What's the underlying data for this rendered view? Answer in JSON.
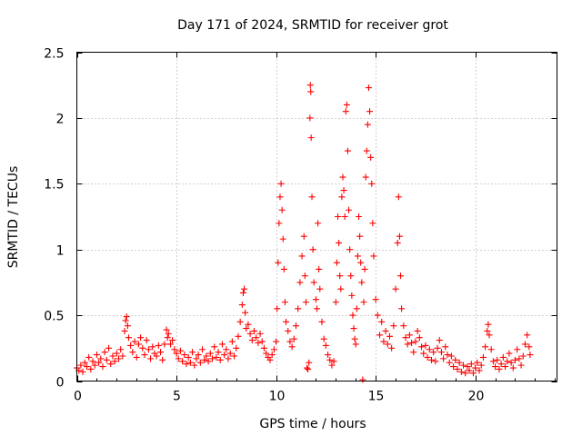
{
  "chart_data": {
    "type": "scatter",
    "title": "Day 171 of 2024, SRMTID for receiver grot",
    "xlabel": "GPS time / hours",
    "ylabel": "SRMTID / TECUs",
    "xlim": [
      0,
      24.1
    ],
    "ylim": [
      0,
      2.5
    ],
    "x_ticks": [
      0,
      5,
      10,
      15,
      20
    ],
    "x_tick_labels": [
      "0",
      "5",
      "10",
      "15",
      "20"
    ],
    "y_ticks": [
      0,
      0.5,
      1,
      1.5,
      2,
      2.5
    ],
    "y_tick_labels": [
      "0",
      "0.5",
      "1",
      "1.5",
      "2",
      "2.5"
    ],
    "grid": true,
    "marker": "+",
    "marker_color": "#ff0000",
    "series": [
      {
        "name": "SRMTID",
        "points": [
          [
            0.0,
            0.1
          ],
          [
            0.1,
            0.08
          ],
          [
            0.2,
            0.12
          ],
          [
            0.3,
            0.07
          ],
          [
            0.4,
            0.14
          ],
          [
            0.5,
            0.11
          ],
          [
            0.6,
            0.18
          ],
          [
            0.7,
            0.09
          ],
          [
            0.8,
            0.15
          ],
          [
            0.9,
            0.12
          ],
          [
            1.0,
            0.2
          ],
          [
            1.1,
            0.14
          ],
          [
            1.2,
            0.17
          ],
          [
            1.3,
            0.11
          ],
          [
            1.4,
            0.22
          ],
          [
            1.5,
            0.16
          ],
          [
            1.6,
            0.25
          ],
          [
            1.7,
            0.13
          ],
          [
            1.8,
            0.19
          ],
          [
            1.9,
            0.15
          ],
          [
            2.0,
            0.21
          ],
          [
            2.1,
            0.17
          ],
          [
            2.2,
            0.24
          ],
          [
            2.3,
            0.19
          ],
          [
            2.4,
            0.38
          ],
          [
            2.45,
            0.46
          ],
          [
            2.5,
            0.49
          ],
          [
            2.55,
            0.42
          ],
          [
            2.6,
            0.33
          ],
          [
            2.7,
            0.27
          ],
          [
            2.8,
            0.22
          ],
          [
            2.9,
            0.3
          ],
          [
            3.0,
            0.18
          ],
          [
            3.1,
            0.28
          ],
          [
            3.2,
            0.33
          ],
          [
            3.3,
            0.25
          ],
          [
            3.4,
            0.2
          ],
          [
            3.5,
            0.31
          ],
          [
            3.6,
            0.24
          ],
          [
            3.7,
            0.17
          ],
          [
            3.8,
            0.26
          ],
          [
            3.9,
            0.21
          ],
          [
            4.0,
            0.19
          ],
          [
            4.1,
            0.27
          ],
          [
            4.2,
            0.22
          ],
          [
            4.3,
            0.16
          ],
          [
            4.4,
            0.28
          ],
          [
            4.5,
            0.39
          ],
          [
            4.55,
            0.33
          ],
          [
            4.6,
            0.36
          ],
          [
            4.7,
            0.28
          ],
          [
            4.8,
            0.31
          ],
          [
            4.9,
            0.24
          ],
          [
            5.0,
            0.21
          ],
          [
            5.1,
            0.17
          ],
          [
            5.2,
            0.23
          ],
          [
            5.3,
            0.15
          ],
          [
            5.4,
            0.2
          ],
          [
            5.5,
            0.13
          ],
          [
            5.6,
            0.18
          ],
          [
            5.7,
            0.14
          ],
          [
            5.8,
            0.22
          ],
          [
            5.9,
            0.12
          ],
          [
            6.0,
            0.17
          ],
          [
            6.1,
            0.2
          ],
          [
            6.2,
            0.14
          ],
          [
            6.3,
            0.24
          ],
          [
            6.4,
            0.16
          ],
          [
            6.5,
            0.19
          ],
          [
            6.6,
            0.15
          ],
          [
            6.7,
            0.21
          ],
          [
            6.8,
            0.17
          ],
          [
            6.9,
            0.26
          ],
          [
            7.0,
            0.18
          ],
          [
            7.1,
            0.22
          ],
          [
            7.2,
            0.16
          ],
          [
            7.3,
            0.28
          ],
          [
            7.4,
            0.2
          ],
          [
            7.5,
            0.24
          ],
          [
            7.6,
            0.17
          ],
          [
            7.7,
            0.21
          ],
          [
            7.8,
            0.3
          ],
          [
            7.9,
            0.19
          ],
          [
            8.0,
            0.25
          ],
          [
            8.1,
            0.34
          ],
          [
            8.2,
            0.45
          ],
          [
            8.3,
            0.58
          ],
          [
            8.35,
            0.67
          ],
          [
            8.4,
            0.7
          ],
          [
            8.45,
            0.52
          ],
          [
            8.5,
            0.4
          ],
          [
            8.6,
            0.43
          ],
          [
            8.7,
            0.36
          ],
          [
            8.8,
            0.31
          ],
          [
            8.9,
            0.38
          ],
          [
            9.0,
            0.33
          ],
          [
            9.1,
            0.29
          ],
          [
            9.2,
            0.36
          ],
          [
            9.3,
            0.3
          ],
          [
            9.4,
            0.25
          ],
          [
            9.5,
            0.21
          ],
          [
            9.6,
            0.18
          ],
          [
            9.7,
            0.16
          ],
          [
            9.8,
            0.2
          ],
          [
            9.9,
            0.24
          ],
          [
            10.0,
            0.3
          ],
          [
            10.05,
            0.55
          ],
          [
            10.1,
            0.9
          ],
          [
            10.15,
            1.2
          ],
          [
            10.2,
            1.4
          ],
          [
            10.25,
            1.5
          ],
          [
            10.3,
            1.3
          ],
          [
            10.35,
            1.08
          ],
          [
            10.4,
            0.85
          ],
          [
            10.45,
            0.6
          ],
          [
            10.5,
            0.45
          ],
          [
            10.6,
            0.38
          ],
          [
            10.7,
            0.3
          ],
          [
            10.8,
            0.26
          ],
          [
            10.9,
            0.32
          ],
          [
            11.0,
            0.42
          ],
          [
            11.1,
            0.55
          ],
          [
            11.2,
            0.75
          ],
          [
            11.3,
            0.95
          ],
          [
            11.4,
            1.1
          ],
          [
            11.45,
            0.8
          ],
          [
            11.5,
            0.6
          ],
          [
            11.55,
            0.1
          ],
          [
            11.6,
            0.09
          ],
          [
            11.65,
            0.14
          ],
          [
            11.7,
            2.0
          ],
          [
            11.72,
            2.25
          ],
          [
            11.74,
            2.2
          ],
          [
            11.76,
            1.85
          ],
          [
            11.8,
            1.4
          ],
          [
            11.85,
            1.0
          ],
          [
            11.9,
            0.75
          ],
          [
            12.0,
            0.62
          ],
          [
            12.05,
            0.55
          ],
          [
            12.1,
            1.2
          ],
          [
            12.15,
            0.85
          ],
          [
            12.2,
            0.7
          ],
          [
            12.3,
            0.45
          ],
          [
            12.4,
            0.32
          ],
          [
            12.5,
            0.27
          ],
          [
            12.6,
            0.2
          ],
          [
            12.7,
            0.16
          ],
          [
            12.8,
            0.12
          ],
          [
            12.9,
            0.15
          ],
          [
            13.0,
            0.6
          ],
          [
            13.05,
            0.9
          ],
          [
            13.1,
            1.25
          ],
          [
            13.15,
            1.05
          ],
          [
            13.2,
            0.8
          ],
          [
            13.25,
            0.7
          ],
          [
            13.3,
            1.4
          ],
          [
            13.35,
            1.55
          ],
          [
            13.4,
            1.45
          ],
          [
            13.45,
            1.25
          ],
          [
            13.5,
            2.05
          ],
          [
            13.55,
            2.1
          ],
          [
            13.6,
            1.75
          ],
          [
            13.65,
            1.3
          ],
          [
            13.7,
            1.0
          ],
          [
            13.75,
            0.8
          ],
          [
            13.8,
            0.65
          ],
          [
            13.85,
            0.5
          ],
          [
            13.9,
            0.4
          ],
          [
            13.95,
            0.32
          ],
          [
            14.0,
            0.28
          ],
          [
            14.05,
            0.55
          ],
          [
            14.1,
            0.95
          ],
          [
            14.15,
            1.25
          ],
          [
            14.2,
            1.1
          ],
          [
            14.25,
            0.9
          ],
          [
            14.3,
            0.75
          ],
          [
            14.35,
            0.01
          ],
          [
            14.4,
            0.6
          ],
          [
            14.45,
            0.85
          ],
          [
            14.5,
            1.55
          ],
          [
            14.55,
            1.75
          ],
          [
            14.6,
            1.95
          ],
          [
            14.65,
            2.23
          ],
          [
            14.7,
            2.05
          ],
          [
            14.75,
            1.7
          ],
          [
            14.8,
            1.5
          ],
          [
            14.85,
            1.2
          ],
          [
            14.9,
            0.95
          ],
          [
            15.0,
            0.62
          ],
          [
            15.1,
            0.5
          ],
          [
            15.2,
            0.35
          ],
          [
            15.3,
            0.45
          ],
          [
            15.4,
            0.3
          ],
          [
            15.5,
            0.38
          ],
          [
            15.6,
            0.28
          ],
          [
            15.7,
            0.34
          ],
          [
            15.8,
            0.25
          ],
          [
            15.9,
            0.42
          ],
          [
            16.0,
            0.7
          ],
          [
            16.1,
            1.05
          ],
          [
            16.15,
            1.4
          ],
          [
            16.2,
            1.1
          ],
          [
            16.25,
            0.8
          ],
          [
            16.3,
            0.55
          ],
          [
            16.4,
            0.42
          ],
          [
            16.5,
            0.33
          ],
          [
            16.6,
            0.28
          ],
          [
            16.7,
            0.35
          ],
          [
            16.8,
            0.29
          ],
          [
            16.9,
            0.22
          ],
          [
            17.0,
            0.3
          ],
          [
            17.1,
            0.38
          ],
          [
            17.2,
            0.33
          ],
          [
            17.3,
            0.26
          ],
          [
            17.4,
            0.21
          ],
          [
            17.5,
            0.27
          ],
          [
            17.6,
            0.18
          ],
          [
            17.7,
            0.24
          ],
          [
            17.8,
            0.16
          ],
          [
            17.9,
            0.22
          ],
          [
            18.0,
            0.15
          ],
          [
            18.1,
            0.25
          ],
          [
            18.2,
            0.31
          ],
          [
            18.3,
            0.22
          ],
          [
            18.4,
            0.17
          ],
          [
            18.5,
            0.26
          ],
          [
            18.6,
            0.2
          ],
          [
            18.7,
            0.14
          ],
          [
            18.8,
            0.19
          ],
          [
            18.9,
            0.11
          ],
          [
            19.0,
            0.16
          ],
          [
            19.1,
            0.09
          ],
          [
            19.2,
            0.14
          ],
          [
            19.3,
            0.07
          ],
          [
            19.4,
            0.12
          ],
          [
            19.5,
            0.06
          ],
          [
            19.6,
            0.11
          ],
          [
            19.7,
            0.08
          ],
          [
            19.8,
            0.13
          ],
          [
            19.9,
            0.06
          ],
          [
            20.0,
            0.1
          ],
          [
            20.1,
            0.14
          ],
          [
            20.2,
            0.08
          ],
          [
            20.3,
            0.12
          ],
          [
            20.4,
            0.18
          ],
          [
            20.5,
            0.26
          ],
          [
            20.6,
            0.38
          ],
          [
            20.65,
            0.43
          ],
          [
            20.7,
            0.35
          ],
          [
            20.8,
            0.24
          ],
          [
            20.9,
            0.15
          ],
          [
            21.0,
            0.11
          ],
          [
            21.1,
            0.16
          ],
          [
            21.2,
            0.09
          ],
          [
            21.3,
            0.13
          ],
          [
            21.4,
            0.18
          ],
          [
            21.5,
            0.11
          ],
          [
            21.6,
            0.15
          ],
          [
            21.7,
            0.21
          ],
          [
            21.8,
            0.14
          ],
          [
            21.9,
            0.1
          ],
          [
            22.0,
            0.16
          ],
          [
            22.1,
            0.24
          ],
          [
            22.2,
            0.17
          ],
          [
            22.3,
            0.12
          ],
          [
            22.4,
            0.19
          ],
          [
            22.5,
            0.28
          ],
          [
            22.6,
            0.35
          ],
          [
            22.7,
            0.26
          ],
          [
            22.75,
            0.2
          ]
        ]
      }
    ]
  }
}
